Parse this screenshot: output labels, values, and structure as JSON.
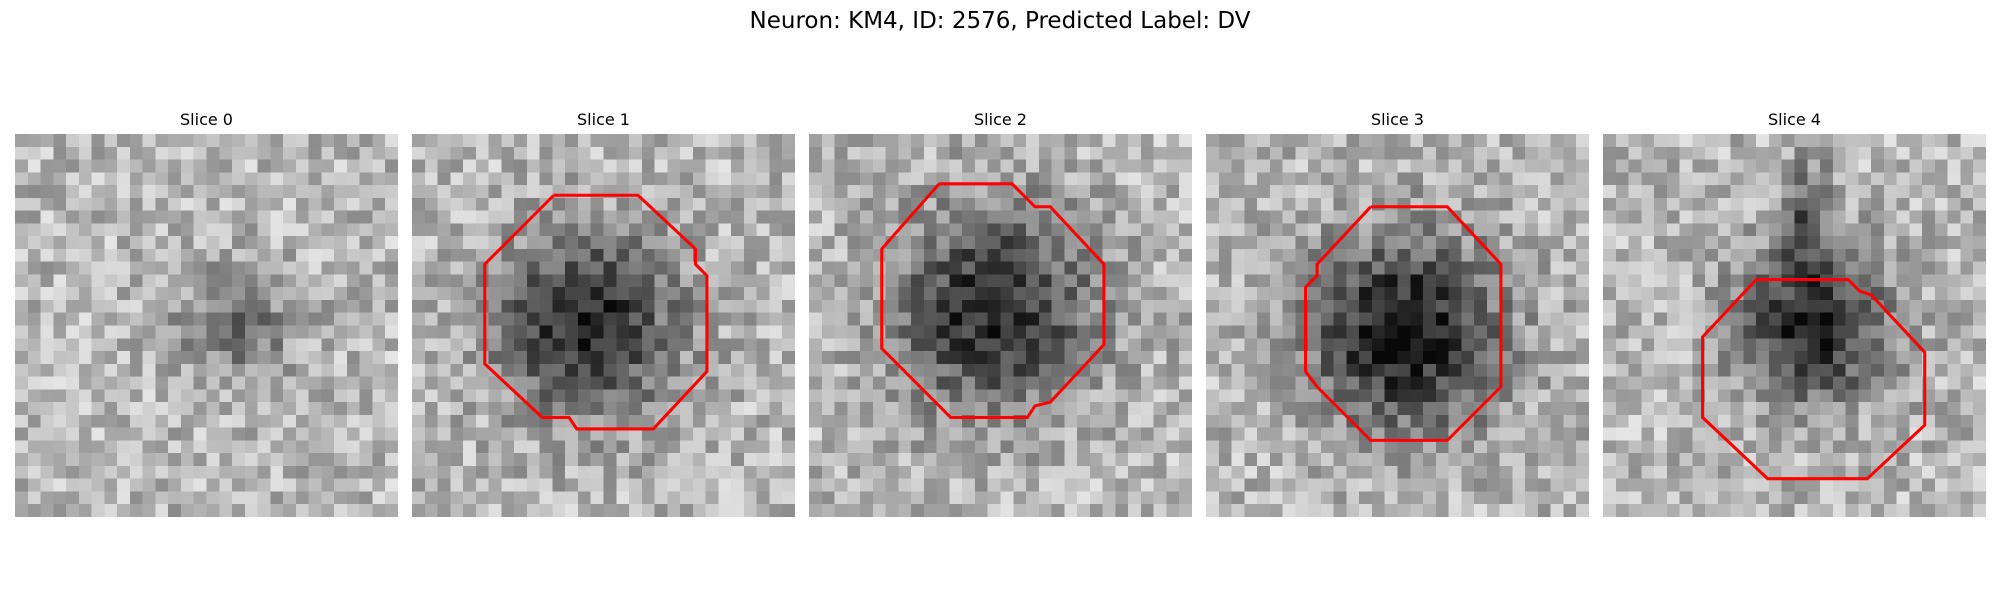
{
  "figure": {
    "title": "Neuron: KM4, ID: 2576, Predicted Label: DV"
  },
  "colors": {
    "background": "#ffffff",
    "contour": "#ff0000",
    "text": "#000000"
  },
  "image_grid": {
    "rows": 30,
    "cols": 30,
    "colormap": "grayscale (dark = high intensity)"
  },
  "panels": [
    {
      "title": "Slice 0",
      "has_contour": false,
      "blob_center": [
        0.58,
        0.5
      ],
      "blob_radius": 0.16,
      "blob_strength": 0.3,
      "seed": 11
    },
    {
      "title": "Slice 1",
      "has_contour": true,
      "blob_center": [
        0.46,
        0.5
      ],
      "blob_radius": 0.25,
      "blob_strength": 0.6,
      "seed": 23,
      "contour_points": [
        [
          0.37,
          0.16
        ],
        [
          0.59,
          0.16
        ],
        [
          0.74,
          0.3
        ],
        [
          0.74,
          0.34
        ],
        [
          0.77,
          0.37
        ],
        [
          0.77,
          0.62
        ],
        [
          0.63,
          0.77
        ],
        [
          0.43,
          0.77
        ],
        [
          0.41,
          0.74
        ],
        [
          0.34,
          0.74
        ],
        [
          0.19,
          0.6
        ],
        [
          0.19,
          0.34
        ],
        [
          0.37,
          0.16
        ]
      ]
    },
    {
      "title": "Slice 2",
      "has_contour": true,
      "blob_center": [
        0.48,
        0.46
      ],
      "blob_radius": 0.28,
      "blob_strength": 0.58,
      "seed": 37,
      "contour_points": [
        [
          0.34,
          0.13
        ],
        [
          0.53,
          0.13
        ],
        [
          0.59,
          0.19
        ],
        [
          0.63,
          0.19
        ],
        [
          0.77,
          0.34
        ],
        [
          0.77,
          0.55
        ],
        [
          0.63,
          0.7
        ],
        [
          0.59,
          0.71
        ],
        [
          0.57,
          0.74
        ],
        [
          0.37,
          0.74
        ],
        [
          0.19,
          0.56
        ],
        [
          0.19,
          0.3
        ],
        [
          0.34,
          0.13
        ]
      ]
    },
    {
      "title": "Slice 3",
      "has_contour": true,
      "blob_center": [
        0.52,
        0.52
      ],
      "blob_radius": 0.27,
      "blob_strength": 0.66,
      "seed": 53,
      "contour_points": [
        [
          0.43,
          0.19
        ],
        [
          0.63,
          0.19
        ],
        [
          0.77,
          0.34
        ],
        [
          0.77,
          0.66
        ],
        [
          0.63,
          0.8
        ],
        [
          0.43,
          0.8
        ],
        [
          0.29,
          0.66
        ],
        [
          0.26,
          0.62
        ],
        [
          0.26,
          0.4
        ],
        [
          0.29,
          0.37
        ],
        [
          0.29,
          0.34
        ],
        [
          0.43,
          0.19
        ]
      ]
    },
    {
      "title": "Slice 4",
      "has_contour": true,
      "blob_center": [
        0.55,
        0.5
      ],
      "blob_radius": 0.21,
      "blob_strength": 0.62,
      "stalk": true,
      "seed": 71,
      "contour_points": [
        [
          0.4,
          0.38
        ],
        [
          0.64,
          0.38
        ],
        [
          0.67,
          0.41
        ],
        [
          0.7,
          0.42
        ],
        [
          0.84,
          0.57
        ],
        [
          0.84,
          0.76
        ],
        [
          0.69,
          0.9
        ],
        [
          0.43,
          0.9
        ],
        [
          0.26,
          0.74
        ],
        [
          0.26,
          0.53
        ],
        [
          0.4,
          0.38
        ]
      ]
    }
  ]
}
